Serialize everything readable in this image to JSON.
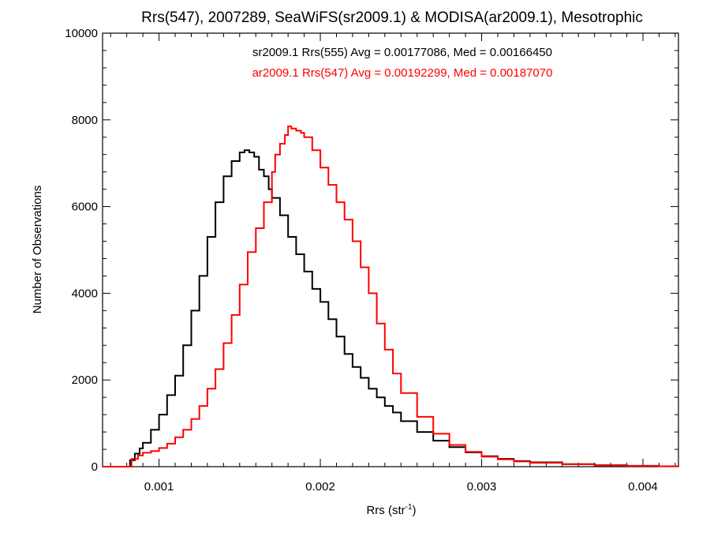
{
  "chart_data": {
    "type": "line",
    "title": "Rrs(547), 2007289, SeaWiFS(sr2009.1) & MODISA(ar2009.1), Mesotrophic",
    "xlabel": "Rrs (str",
    "xlabel_superscript": "-1",
    "xlabel_suffix": ")",
    "ylabel": "Number of Observations",
    "xlim": [
      0.00065,
      0.00422
    ],
    "ylim": [
      0,
      10000
    ],
    "x_ticks": [
      0.001,
      0.002,
      0.003,
      0.004
    ],
    "x_tick_labels": [
      "0.001",
      "0.002",
      "0.003",
      "0.004"
    ],
    "y_ticks": [
      0,
      2000,
      4000,
      6000,
      8000,
      10000
    ],
    "y_tick_labels": [
      "0",
      "2000",
      "4000",
      "6000",
      "8000",
      "10000"
    ],
    "grid": false,
    "legend_position": "top-center",
    "series": [
      {
        "name": "sr2009.1 Rrs(555) Avg = 0.00177086, Med = 0.00166450",
        "color": "#000000",
        "x": [
          0.00065,
          0.0008,
          0.00082,
          0.00085,
          0.00088,
          0.0009,
          0.00095,
          0.001,
          0.00105,
          0.0011,
          0.00115,
          0.0012,
          0.00125,
          0.0013,
          0.00135,
          0.0014,
          0.00145,
          0.0015,
          0.00153,
          0.00156,
          0.00159,
          0.00162,
          0.00165,
          0.00168,
          0.0017,
          0.00175,
          0.0018,
          0.00185,
          0.0019,
          0.00195,
          0.002,
          0.00205,
          0.0021,
          0.00215,
          0.0022,
          0.00225,
          0.0023,
          0.00235,
          0.0024,
          0.00245,
          0.0025,
          0.0026,
          0.0027,
          0.0028,
          0.0029,
          0.003,
          0.0031,
          0.0032,
          0.0033,
          0.0035,
          0.0037,
          0.0039,
          0.0041,
          0.00422
        ],
        "y": [
          0,
          0,
          150,
          300,
          420,
          550,
          850,
          1200,
          1650,
          2100,
          2800,
          3600,
          4400,
          5300,
          6100,
          6700,
          7050,
          7250,
          7300,
          7250,
          7150,
          6850,
          6700,
          6400,
          6200,
          5800,
          5300,
          4900,
          4500,
          4100,
          3800,
          3400,
          3000,
          2600,
          2300,
          2050,
          1800,
          1600,
          1400,
          1250,
          1050,
          800,
          600,
          450,
          330,
          240,
          180,
          130,
          100,
          60,
          35,
          20,
          10,
          5
        ]
      },
      {
        "name": "ar2009.1 Rrs(547) Avg = 0.00192299, Med = 0.00187070",
        "color": "#ff0000",
        "x": [
          0.00065,
          0.0008,
          0.00083,
          0.00087,
          0.0009,
          0.00095,
          0.001,
          0.00105,
          0.0011,
          0.00115,
          0.0012,
          0.00125,
          0.0013,
          0.00135,
          0.0014,
          0.00145,
          0.0015,
          0.00155,
          0.0016,
          0.00165,
          0.0017,
          0.00172,
          0.00175,
          0.00178,
          0.0018,
          0.00182,
          0.00185,
          0.00188,
          0.0019,
          0.00195,
          0.002,
          0.00205,
          0.0021,
          0.00215,
          0.0022,
          0.00225,
          0.0023,
          0.00235,
          0.0024,
          0.00245,
          0.0025,
          0.0026,
          0.0027,
          0.0028,
          0.0029,
          0.003,
          0.0031,
          0.0032,
          0.0033,
          0.0035,
          0.0037,
          0.0039,
          0.0041,
          0.00422
        ],
        "y": [
          0,
          0,
          180,
          260,
          320,
          360,
          430,
          530,
          680,
          850,
          1100,
          1400,
          1800,
          2250,
          2850,
          3500,
          4200,
          4950,
          5500,
          6100,
          6800,
          7200,
          7450,
          7650,
          7850,
          7800,
          7750,
          7700,
          7600,
          7300,
          6900,
          6500,
          6100,
          5700,
          5200,
          4600,
          4000,
          3300,
          2700,
          2150,
          1700,
          1150,
          760,
          500,
          340,
          230,
          170,
          120,
          90,
          55,
          30,
          18,
          10,
          5
        ]
      }
    ]
  }
}
